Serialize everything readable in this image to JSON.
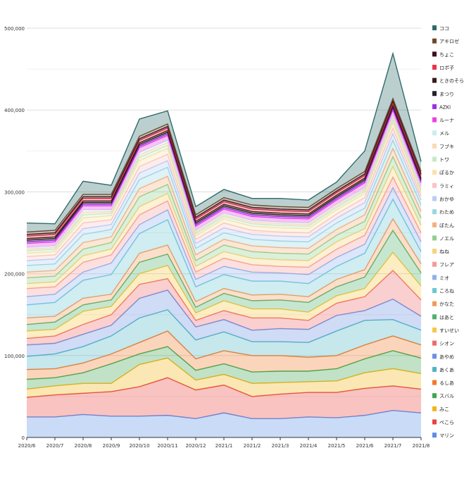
{
  "chart_data": {
    "type": "area",
    "stacked": true,
    "title": "",
    "xlabel": "",
    "ylabel": "",
    "ylim": [
      0,
      500000
    ],
    "yticks": [
      0,
      100000,
      200000,
      300000,
      400000,
      500000
    ],
    "ytick_labels": [
      "0",
      "100,000",
      "200,000",
      "300,000",
      "400,000",
      "500,000"
    ],
    "grid": true,
    "legend_position": "right",
    "categories": [
      "2020/6",
      "2020/7",
      "2020/8",
      "2020/9",
      "2020/10",
      "2020/11",
      "2020/12",
      "2021/1",
      "2021/2",
      "2021/3",
      "2021/4",
      "2021/5",
      "2021/6",
      "2021/7",
      "2021/8"
    ],
    "series": [
      {
        "name": "マリン",
        "color": "#5b8fe6",
        "values": [
          25000,
          25000,
          28000,
          26000,
          26000,
          27000,
          23000,
          30000,
          23000,
          23000,
          25000,
          24000,
          27000,
          33000,
          30000
        ]
      },
      {
        "name": "ぺこら",
        "color": "#e8433f",
        "values": [
          24000,
          27000,
          26000,
          30000,
          36000,
          46000,
          35000,
          34000,
          27000,
          30000,
          30000,
          31000,
          33000,
          30000,
          29000
        ]
      },
      {
        "name": "みこ",
        "color": "#f2b517",
        "values": [
          10000,
          11000,
          12000,
          10000,
          27000,
          24000,
          12000,
          13000,
          16000,
          14000,
          13000,
          14000,
          19000,
          21000,
          19000
        ]
      },
      {
        "name": "スバル",
        "color": "#3fa64f",
        "values": [
          12000,
          10000,
          13000,
          24000,
          13000,
          14000,
          12000,
          13000,
          14000,
          14000,
          13000,
          15000,
          17000,
          22000,
          19000
        ]
      },
      {
        "name": "るしあ",
        "color": "#f07b2a",
        "values": [
          12000,
          11000,
          12000,
          12000,
          14000,
          19000,
          14000,
          16000,
          20000,
          19000,
          17000,
          16000,
          17000,
          18000,
          16000
        ]
      },
      {
        "name": "あくあ",
        "color": "#4fb4c4",
        "values": [
          16000,
          18000,
          20000,
          22000,
          30000,
          26000,
          23000,
          23000,
          17000,
          17000,
          18000,
          30000,
          30000,
          20000,
          18000
        ]
      },
      {
        "name": "あやめ",
        "color": "#6d8fe0",
        "values": [
          14000,
          13000,
          15000,
          13000,
          24000,
          24000,
          16000,
          15000,
          14000,
          16000,
          16000,
          19000,
          12000,
          25000,
          17000
        ]
      },
      {
        "name": "シオン",
        "color": "#ef6a6a",
        "values": [
          8000,
          9000,
          12000,
          13000,
          17000,
          14000,
          8000,
          11000,
          15000,
          13000,
          11000,
          15000,
          17000,
          35000,
          20000
        ]
      },
      {
        "name": "すいせい",
        "color": "#f5c842",
        "values": [
          9000,
          8000,
          16000,
          10000,
          13000,
          16000,
          9000,
          12000,
          11000,
          11000,
          10000,
          9000,
          10000,
          22000,
          17000
        ]
      },
      {
        "name": "はあと",
        "color": "#52b06a",
        "values": [
          8000,
          9000,
          8000,
          8000,
          14000,
          14000,
          7000,
          9000,
          10000,
          11000,
          12000,
          11000,
          14000,
          27000,
          16000
        ]
      },
      {
        "name": "かなた",
        "color": "#f29a5a",
        "values": [
          8000,
          7000,
          8000,
          7000,
          11000,
          11000,
          7000,
          6000,
          7000,
          7000,
          7000,
          9000,
          9000,
          14000,
          11000
        ]
      },
      {
        "name": "ころね",
        "color": "#6cc7d4",
        "values": [
          16000,
          17000,
          22000,
          24000,
          24000,
          31000,
          18000,
          17000,
          17000,
          16000,
          16000,
          16000,
          20000,
          24000,
          15000
        ]
      },
      {
        "name": "ミオ",
        "color": "#8fb0ef",
        "values": [
          10000,
          10000,
          10000,
          14000,
          11000,
          12000,
          9000,
          10000,
          11000,
          10000,
          11000,
          11000,
          11000,
          14000,
          12000
        ]
      },
      {
        "name": "フレア",
        "color": "#f59a9a",
        "values": [
          10000,
          9000,
          12000,
          10000,
          12000,
          11000,
          9000,
          10000,
          9000,
          8000,
          9000,
          10000,
          11000,
          13000,
          11000
        ]
      },
      {
        "name": "ねね",
        "color": "#f7d27a",
        "values": [
          6000,
          6000,
          8000,
          7000,
          10000,
          9000,
          7000,
          8000,
          8000,
          8000,
          8000,
          9000,
          8000,
          13000,
          9000
        ]
      },
      {
        "name": "ノエル",
        "color": "#8fcf8f",
        "values": [
          7000,
          7000,
          8000,
          8000,
          12000,
          11000,
          7000,
          8000,
          8000,
          8000,
          8000,
          8000,
          9000,
          12000,
          9000
        ]
      },
      {
        "name": "ぼたん",
        "color": "#f6b07c",
        "values": [
          7000,
          7000,
          8000,
          7000,
          10000,
          10000,
          7000,
          7000,
          7000,
          7000,
          7000,
          7000,
          8000,
          10000,
          8000
        ]
      },
      {
        "name": "わため",
        "color": "#9ad7df",
        "values": [
          8000,
          8000,
          10000,
          9000,
          11000,
          11000,
          8000,
          8000,
          8000,
          8000,
          8000,
          8000,
          8000,
          10000,
          8000
        ]
      },
      {
        "name": "おかゆ",
        "color": "#b9cdf5",
        "values": [
          6000,
          6000,
          7000,
          6000,
          8000,
          8000,
          6000,
          6000,
          6000,
          6000,
          6000,
          6000,
          7000,
          8000,
          6000
        ]
      },
      {
        "name": "ラミィ",
        "color": "#f9c4c4",
        "values": [
          5000,
          5000,
          7000,
          6000,
          8000,
          8000,
          5000,
          6000,
          5000,
          5000,
          5000,
          5000,
          6000,
          7000,
          5000
        ]
      },
      {
        "name": "ぽるか",
        "color": "#fae3a8",
        "values": [
          4000,
          4000,
          6000,
          5000,
          7000,
          7000,
          4000,
          5000,
          5000,
          5000,
          5000,
          5000,
          5000,
          6000,
          4000
        ]
      },
      {
        "name": "トワ",
        "color": "#c8e8c8",
        "values": [
          3000,
          3000,
          4000,
          3000,
          4000,
          4000,
          3000,
          3000,
          3000,
          3000,
          3000,
          3000,
          3000,
          4000,
          3000
        ]
      },
      {
        "name": "フブキ",
        "color": "#fbd9b8",
        "values": [
          2000,
          2000,
          3000,
          2000,
          3000,
          3000,
          2000,
          2000,
          2000,
          2000,
          2000,
          2000,
          2000,
          3000,
          2000
        ]
      },
      {
        "name": "メル",
        "color": "#cdebf0",
        "values": [
          2000,
          2000,
          3000,
          2000,
          3000,
          3000,
          2000,
          2000,
          2000,
          2000,
          2000,
          2000,
          2000,
          3000,
          2000
        ]
      },
      {
        "name": "ルーナ",
        "color": "#f03ee6",
        "values": [
          5000,
          5000,
          5000,
          5000,
          6000,
          6000,
          5000,
          5000,
          5000,
          5000,
          5000,
          5000,
          6000,
          6000,
          5000
        ]
      },
      {
        "name": "AZKi",
        "color": "#9b30e8",
        "values": [
          2000,
          2000,
          2000,
          2000,
          2000,
          2000,
          2000,
          2000,
          2000,
          2000,
          2000,
          2000,
          2000,
          2000,
          2000
        ]
      },
      {
        "name": "まつり",
        "color": "#232323",
        "values": [
          2000,
          2000,
          2000,
          2000,
          2000,
          2000,
          2000,
          2000,
          2000,
          2000,
          2000,
          2000,
          2000,
          2000,
          2000
        ]
      },
      {
        "name": "ときのそら",
        "color": "#3a1a1a",
        "values": [
          2000,
          2000,
          2000,
          2000,
          2000,
          2000,
          2000,
          2000,
          2000,
          2000,
          2000,
          2000,
          2000,
          2000,
          2000
        ]
      },
      {
        "name": "ロボ子",
        "color": "#e8344a",
        "values": [
          3000,
          3000,
          3000,
          3000,
          3000,
          3000,
          3000,
          3000,
          3000,
          3000,
          3000,
          3000,
          3000,
          3000,
          3000
        ]
      },
      {
        "name": "ちょこ",
        "color": "#3b1020",
        "values": [
          2000,
          2000,
          2000,
          2000,
          2000,
          2000,
          2000,
          2000,
          2000,
          2000,
          2000,
          2000,
          2000,
          2000,
          2000
        ]
      },
      {
        "name": "アキロゼ",
        "color": "#6b4a2a",
        "values": [
          3000,
          3000,
          3000,
          3000,
          3000,
          3000,
          3000,
          3000,
          3000,
          3000,
          3000,
          3000,
          3000,
          3000,
          3000
        ]
      },
      {
        "name": "ココ",
        "color": "#2f6a6a",
        "values": [
          11000,
          8000,
          16000,
          11000,
          21000,
          16000,
          10000,
          10000,
          8000,
          10000,
          9000,
          8000,
          25000,
          55000,
          12000
        ]
      }
    ]
  }
}
